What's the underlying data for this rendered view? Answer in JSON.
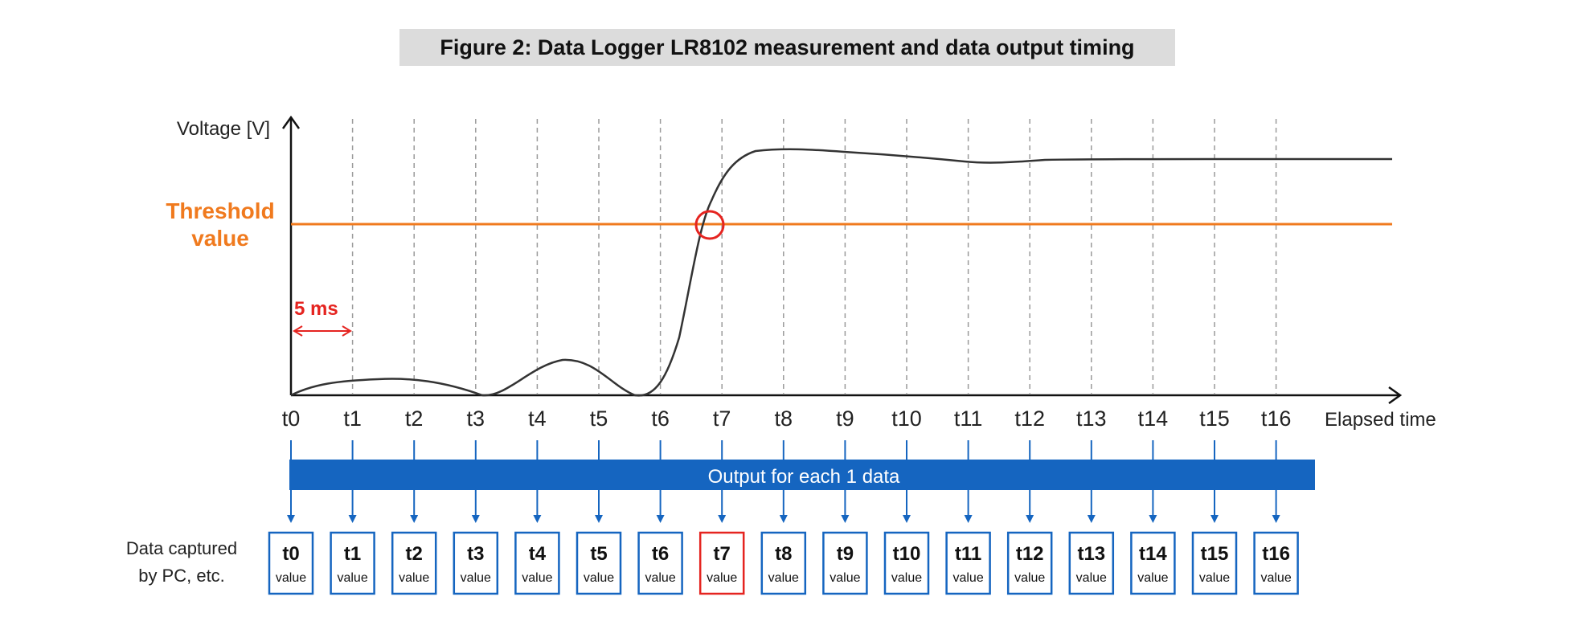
{
  "figure": {
    "title": "Figure 2: Data Logger LR8102 measurement and data output timing"
  },
  "axes": {
    "y_label": "Voltage [V]",
    "x_label": "Elapsed time",
    "ticks": [
      "t0",
      "t1",
      "t2",
      "t3",
      "t4",
      "t5",
      "t6",
      "t7",
      "t8",
      "t9",
      "t10",
      "t11",
      "t12",
      "t13",
      "t14",
      "t15",
      "t16"
    ]
  },
  "threshold": {
    "line1": "Threshold",
    "line2": "value",
    "color": "#f07a1e"
  },
  "interval": {
    "label": "5 ms",
    "color": "#e52420"
  },
  "output_bar": {
    "label": "Output for each 1 data",
    "color": "#1565c0"
  },
  "captured": {
    "label_line1": "Data captured",
    "label_line2": "by PC, etc.",
    "highlight_index": 7,
    "boxes": [
      {
        "t": "t0",
        "v": "value"
      },
      {
        "t": "t1",
        "v": "value"
      },
      {
        "t": "t2",
        "v": "value"
      },
      {
        "t": "t3",
        "v": "value"
      },
      {
        "t": "t4",
        "v": "value"
      },
      {
        "t": "t5",
        "v": "value"
      },
      {
        "t": "t6",
        "v": "value"
      },
      {
        "t": "t7",
        "v": "value"
      },
      {
        "t": "t8",
        "v": "value"
      },
      {
        "t": "t9",
        "v": "value"
      },
      {
        "t": "t10",
        "v": "value"
      },
      {
        "t": "t11",
        "v": "value"
      },
      {
        "t": "t12",
        "v": "value"
      },
      {
        "t": "t13",
        "v": "value"
      },
      {
        "t": "t14",
        "v": "value"
      },
      {
        "t": "t15",
        "v": "value"
      },
      {
        "t": "t16",
        "v": "value"
      }
    ]
  }
}
